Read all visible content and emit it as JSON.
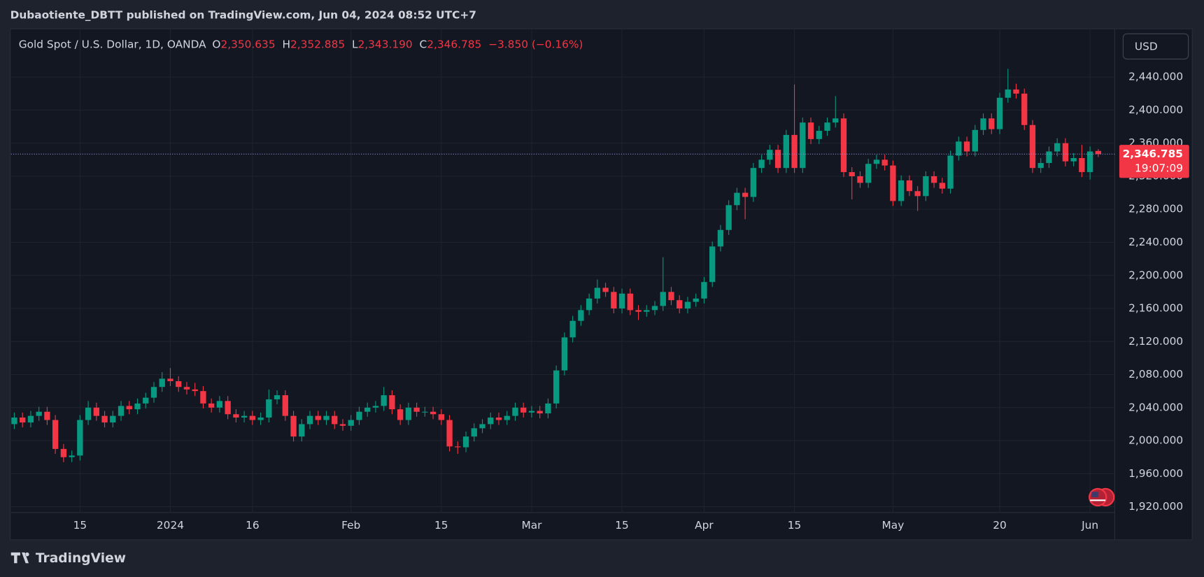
{
  "header": {
    "publisher": "Dubaotiente_DBTT published on TradingView.com, Jun 04, 2024 08:52 UTC+7",
    "brand": "TradingView",
    "currency": "USD"
  },
  "chart_data": {
    "type": "candlestick",
    "legend": {
      "symbol": "Gold Spot / U.S. Dollar, 1D, OANDA",
      "o_key": "O",
      "o": "2,350.635",
      "h_key": "H",
      "h": "2,352.885",
      "l_key": "L",
      "l": "2,343.190",
      "c_key": "C",
      "c": "2,346.785",
      "change": "−3.850 (−0.16%)"
    },
    "last_price_label": "2,346.785",
    "countdown": "19:07:09",
    "up_color": "#089981",
    "down_color": "#f23645",
    "ylim": [
      1913,
      2498
    ],
    "yticks": [
      {
        "value": 1920,
        "label": "1,920.000"
      },
      {
        "value": 1960,
        "label": "1,960.000"
      },
      {
        "value": 2000,
        "label": "2,000.000"
      },
      {
        "value": 2040,
        "label": "2,040.000"
      },
      {
        "value": 2080,
        "label": "2,080.000"
      },
      {
        "value": 2120,
        "label": "2,120.000"
      },
      {
        "value": 2160,
        "label": "2,160.000"
      },
      {
        "value": 2200,
        "label": "2,200.000"
      },
      {
        "value": 2240,
        "label": "2,240.000"
      },
      {
        "value": 2280,
        "label": "2,280.000"
      },
      {
        "value": 2320,
        "label": "2,320.000"
      },
      {
        "value": 2360,
        "label": "2,360.000"
      },
      {
        "value": 2400,
        "label": "2,400.000"
      },
      {
        "value": 2440,
        "label": "2,440.000"
      }
    ],
    "xlim": [
      -0.4,
      134
    ],
    "xticks": [
      {
        "value": 8,
        "label": "15"
      },
      {
        "value": 19,
        "label": "2024"
      },
      {
        "value": 29,
        "label": "16"
      },
      {
        "value": 41,
        "label": "Feb"
      },
      {
        "value": 52,
        "label": "15"
      },
      {
        "value": 63,
        "label": "Mar"
      },
      {
        "value": 74,
        "label": "15"
      },
      {
        "value": 84,
        "label": "Apr"
      },
      {
        "value": 95,
        "label": "15"
      },
      {
        "value": 107,
        "label": "May"
      },
      {
        "value": 120,
        "label": "20"
      },
      {
        "value": 131,
        "label": "Jun"
      }
    ],
    "grid": true,
    "ohlc": [
      [
        2020,
        2034,
        2014,
        2028
      ],
      [
        2028,
        2034,
        2016,
        2022
      ],
      [
        2022,
        2036,
        2016,
        2030
      ],
      [
        2030,
        2041,
        2024,
        2035
      ],
      [
        2035,
        2041,
        2019,
        2025
      ],
      [
        2025,
        2031,
        1984,
        1990
      ],
      [
        1990,
        1996,
        1974,
        1980
      ],
      [
        1980,
        1988,
        1974,
        1982
      ],
      [
        1982,
        2031,
        1976,
        2025
      ],
      [
        2025,
        2048,
        2019,
        2040
      ],
      [
        2040,
        2046,
        2024,
        2030
      ],
      [
        2030,
        2036,
        2016,
        2022
      ],
      [
        2022,
        2036,
        2016,
        2030
      ],
      [
        2030,
        2048,
        2024,
        2042
      ],
      [
        2042,
        2048,
        2032,
        2038
      ],
      [
        2038,
        2051,
        2032,
        2045
      ],
      [
        2045,
        2058,
        2039,
        2052
      ],
      [
        2052,
        2071,
        2046,
        2065
      ],
      [
        2065,
        2083,
        2059,
        2075
      ],
      [
        2075,
        2088,
        2066,
        2072
      ],
      [
        2072,
        2078,
        2059,
        2065
      ],
      [
        2065,
        2071,
        2056,
        2062
      ],
      [
        2062,
        2070,
        2054,
        2060
      ],
      [
        2060,
        2066,
        2039,
        2045
      ],
      [
        2045,
        2051,
        2034,
        2040
      ],
      [
        2040,
        2054,
        2034,
        2048
      ],
      [
        2048,
        2054,
        2026,
        2032
      ],
      [
        2032,
        2038,
        2022,
        2028
      ],
      [
        2028,
        2036,
        2022,
        2030
      ],
      [
        2030,
        2036,
        2019,
        2025
      ],
      [
        2025,
        2034,
        2019,
        2028
      ],
      [
        2028,
        2062,
        2022,
        2050
      ],
      [
        2050,
        2061,
        2044,
        2055
      ],
      [
        2055,
        2061,
        2024,
        2030
      ],
      [
        2030,
        2036,
        1999,
        2005
      ],
      [
        2005,
        2026,
        1999,
        2020
      ],
      [
        2020,
        2036,
        2014,
        2030
      ],
      [
        2030,
        2036,
        2019,
        2025
      ],
      [
        2025,
        2036,
        2019,
        2030
      ],
      [
        2030,
        2036,
        2014,
        2020
      ],
      [
        2020,
        2026,
        2012,
        2018
      ],
      [
        2018,
        2031,
        2012,
        2025
      ],
      [
        2025,
        2041,
        2019,
        2035
      ],
      [
        2035,
        2046,
        2029,
        2040
      ],
      [
        2040,
        2048,
        2034,
        2042
      ],
      [
        2042,
        2065,
        2036,
        2055
      ],
      [
        2055,
        2061,
        2032,
        2038
      ],
      [
        2038,
        2044,
        2019,
        2025
      ],
      [
        2025,
        2046,
        2019,
        2040
      ],
      [
        2040,
        2046,
        2029,
        2035
      ],
      [
        2035,
        2041,
        2029,
        2035
      ],
      [
        2035,
        2041,
        2026,
        2032
      ],
      [
        2032,
        2038,
        2019,
        2025
      ],
      [
        2025,
        2031,
        1987,
        1993
      ],
      [
        1993,
        1999,
        1984,
        1992
      ],
      [
        1992,
        2011,
        1986,
        2005
      ],
      [
        2005,
        2021,
        1999,
        2015
      ],
      [
        2015,
        2026,
        2009,
        2020
      ],
      [
        2020,
        2034,
        2014,
        2028
      ],
      [
        2028,
        2034,
        2019,
        2025
      ],
      [
        2025,
        2036,
        2019,
        2030
      ],
      [
        2030,
        2046,
        2024,
        2040
      ],
      [
        2040,
        2046,
        2028,
        2034
      ],
      [
        2034,
        2042,
        2028,
        2036
      ],
      [
        2036,
        2042,
        2027,
        2033
      ],
      [
        2033,
        2051,
        2027,
        2045
      ],
      [
        2045,
        2091,
        2039,
        2085
      ],
      [
        2085,
        2131,
        2079,
        2125
      ],
      [
        2125,
        2151,
        2119,
        2145
      ],
      [
        2145,
        2164,
        2139,
        2158
      ],
      [
        2158,
        2178,
        2152,
        2172
      ],
      [
        2172,
        2195,
        2166,
        2185
      ],
      [
        2185,
        2191,
        2174,
        2180
      ],
      [
        2180,
        2186,
        2154,
        2160
      ],
      [
        2160,
        2184,
        2154,
        2178
      ],
      [
        2178,
        2184,
        2152,
        2158
      ],
      [
        2158,
        2164,
        2146,
        2156
      ],
      [
        2156,
        2164,
        2150,
        2158
      ],
      [
        2158,
        2169,
        2152,
        2163
      ],
      [
        2163,
        2222,
        2157,
        2180
      ],
      [
        2180,
        2186,
        2164,
        2170
      ],
      [
        2170,
        2176,
        2154,
        2160
      ],
      [
        2160,
        2174,
        2154,
        2168
      ],
      [
        2168,
        2178,
        2162,
        2172
      ],
      [
        2172,
        2198,
        2166,
        2192
      ],
      [
        2192,
        2241,
        2186,
        2235
      ],
      [
        2235,
        2261,
        2229,
        2255
      ],
      [
        2255,
        2291,
        2249,
        2285
      ],
      [
        2285,
        2306,
        2279,
        2300
      ],
      [
        2300,
        2306,
        2268,
        2295
      ],
      [
        2295,
        2336,
        2289,
        2330
      ],
      [
        2330,
        2346,
        2324,
        2340
      ],
      [
        2340,
        2358,
        2334,
        2352
      ],
      [
        2352,
        2358,
        2324,
        2330
      ],
      [
        2330,
        2376,
        2324,
        2370
      ],
      [
        2370,
        2431,
        2324,
        2330
      ],
      [
        2330,
        2391,
        2324,
        2385
      ],
      [
        2385,
        2391,
        2359,
        2365
      ],
      [
        2365,
        2381,
        2359,
        2375
      ],
      [
        2375,
        2391,
        2369,
        2385
      ],
      [
        2385,
        2417,
        2379,
        2390
      ],
      [
        2390,
        2396,
        2319,
        2325
      ],
      [
        2325,
        2331,
        2292,
        2320
      ],
      [
        2320,
        2326,
        2306,
        2312
      ],
      [
        2312,
        2341,
        2306,
        2335
      ],
      [
        2335,
        2346,
        2329,
        2340
      ],
      [
        2340,
        2346,
        2327,
        2333
      ],
      [
        2333,
        2339,
        2284,
        2290
      ],
      [
        2290,
        2321,
        2284,
        2315
      ],
      [
        2315,
        2321,
        2296,
        2302
      ],
      [
        2302,
        2308,
        2278,
        2296
      ],
      [
        2296,
        2326,
        2290,
        2320
      ],
      [
        2320,
        2326,
        2306,
        2312
      ],
      [
        2312,
        2318,
        2299,
        2305
      ],
      [
        2305,
        2351,
        2299,
        2345
      ],
      [
        2345,
        2368,
        2339,
        2362
      ],
      [
        2362,
        2368,
        2344,
        2350
      ],
      [
        2350,
        2382,
        2344,
        2376
      ],
      [
        2376,
        2396,
        2370,
        2390
      ],
      [
        2390,
        2396,
        2371,
        2377
      ],
      [
        2377,
        2421,
        2371,
        2415
      ],
      [
        2415,
        2450,
        2409,
        2425
      ],
      [
        2425,
        2432,
        2414,
        2420
      ],
      [
        2420,
        2426,
        2376,
        2382
      ],
      [
        2382,
        2388,
        2324,
        2330
      ],
      [
        2330,
        2342,
        2324,
        2336
      ],
      [
        2336,
        2356,
        2330,
        2350
      ],
      [
        2350,
        2366,
        2344,
        2360
      ],
      [
        2360,
        2366,
        2332,
        2338
      ],
      [
        2338,
        2348,
        2332,
        2342
      ],
      [
        2342,
        2358,
        2319,
        2325
      ],
      [
        2325,
        2356,
        2316,
        2350
      ],
      [
        2350.635,
        2352.885,
        2343.19,
        2346.785
      ]
    ]
  }
}
